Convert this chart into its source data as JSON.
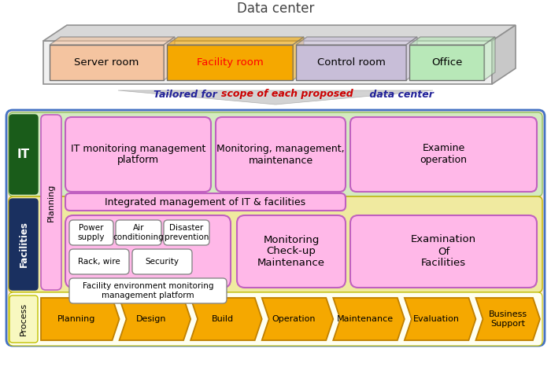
{
  "title": "Data center",
  "rooms": [
    "Server room",
    "Facility room",
    "Control room",
    "Office"
  ],
  "room_colors": [
    "#F4C4A0",
    "#F5A800",
    "#C8BED8",
    "#B8E8B8"
  ],
  "room_text_colors": [
    "#000000",
    "#FF0000",
    "#000000",
    "#000000"
  ],
  "process_labels": [
    "Planning",
    "Design",
    "Build",
    "Operation",
    "Maintenance",
    "Evaluation",
    "Business\nSupport"
  ],
  "process_color": "#F5A800",
  "process_ec": "#C08000",
  "bg_outer_color": "#FAE8D0",
  "bg_green_it": "#D4EAC0",
  "bg_yellow_fac": "#F0EAA0",
  "bg_process": "#FFFFF0",
  "it_box_color": "#1A5C1A",
  "facilities_box_color": "#1A3060",
  "planning_box_color": "#FFB8E8",
  "pink_box": "#FFB8E8",
  "pink_ec": "#C060C0",
  "white_box": "#FFFFFF",
  "border_blue": "#4472C4",
  "subtitle_normal1": "Tailored for",
  "subtitle_red": "scope of each proposed",
  "subtitle_normal2": "data center"
}
